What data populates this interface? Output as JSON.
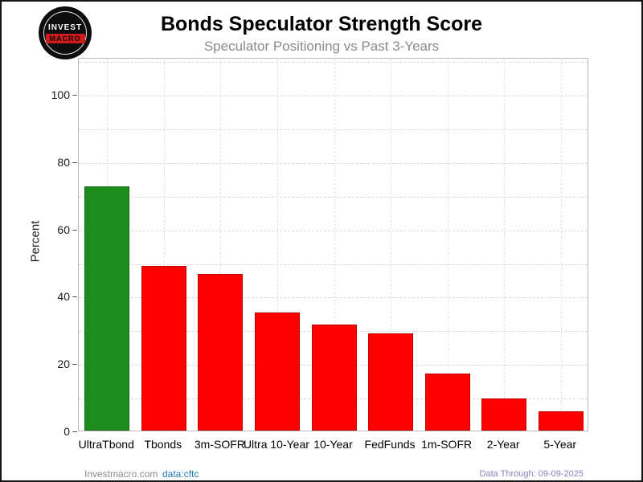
{
  "header": {
    "logo_line1": "INVEST",
    "logo_line2": "MACRO",
    "title": "Bonds Speculator Strength Score",
    "subtitle": "Speculator Positioning vs Past 3-Years"
  },
  "chart_data": {
    "type": "bar",
    "title": "Bonds Speculator Strength Score",
    "subtitle": "Speculator Positioning vs Past 3-Years",
    "categories": [
      "UltraTbond",
      "Tbonds",
      "3m-SOFR",
      "Ultra 10-Year",
      "10-Year",
      "FedFunds",
      "1m-SOFR",
      "2-Year",
      "5-Year"
    ],
    "values": [
      72.5,
      49,
      46.5,
      35,
      31.5,
      29,
      17,
      9.5,
      5.8
    ],
    "bar_colors": [
      "#1e8b1e",
      "#fe0000",
      "#fe0000",
      "#fe0000",
      "#fe0000",
      "#fe0000",
      "#fe0000",
      "#fe0000",
      "#fe0000"
    ],
    "xlabel": "",
    "ylabel": "Percent",
    "ylim": [
      0,
      111
    ],
    "yticks_labeled": [
      0,
      20,
      40,
      60,
      80,
      100
    ],
    "ygrid_minor_step": 10,
    "grid": "dashed",
    "legend": "none"
  },
  "footer": {
    "site": "Investmacro.com",
    "source": "data:cftc",
    "data_through": "Data Through: 09-09-2025"
  },
  "colors": {
    "highlight_green": "#1e8b1e",
    "bar_red": "#fe0000",
    "subtitle_gray": "#8a8a8a",
    "source_blue": "#1f76b4",
    "through_blue": "#8585bd"
  }
}
